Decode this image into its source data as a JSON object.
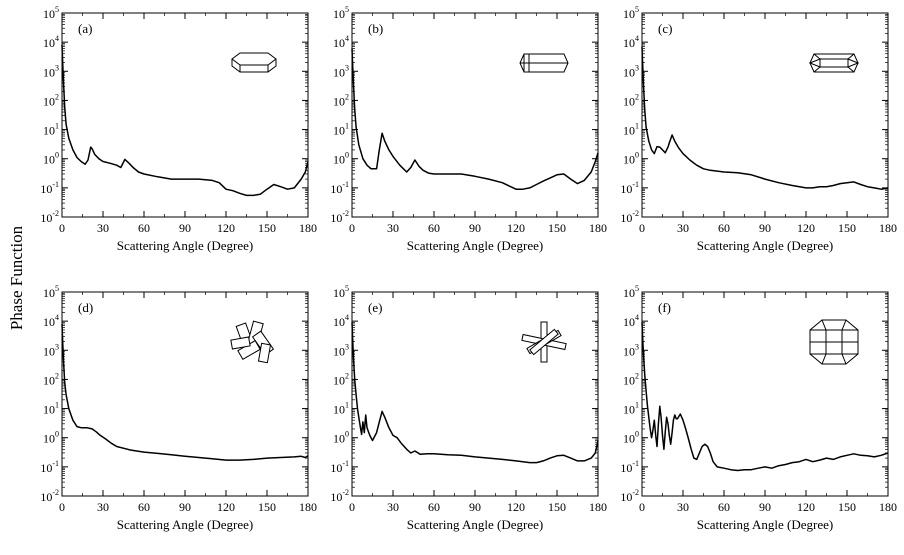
{
  "figure": {
    "ylabel": "Phase Function",
    "xlabel": "Scattering Angle (Degree)",
    "x_ticks": [
      "0",
      "30",
      "60",
      "90",
      "120",
      "150",
      "180"
    ],
    "y_ticks": [
      {
        "base": "10",
        "exp": "-2"
      },
      {
        "base": "10",
        "exp": "-1"
      },
      {
        "base": "10",
        "exp": "0"
      },
      {
        "base": "10",
        "exp": "1"
      },
      {
        "base": "10",
        "exp": "2"
      },
      {
        "base": "10",
        "exp": "3"
      },
      {
        "base": "10",
        "exp": "4"
      },
      {
        "base": "10",
        "exp": "5"
      }
    ],
    "line_color": "#000000"
  },
  "chart_data": [
    {
      "type": "line",
      "panel": "(a)",
      "crystal_icon": "hexagonal-plate-icon",
      "xlabel": "Scattering Angle (Degree)",
      "xlim": [
        0,
        180
      ],
      "ylim": [
        0.01,
        100000
      ],
      "yscale": "log",
      "x": [
        0,
        1,
        2,
        3,
        5,
        8,
        11,
        14,
        17,
        19,
        21,
        22,
        24,
        27,
        30,
        35,
        40,
        43,
        46,
        49,
        52,
        56,
        60,
        70,
        80,
        90,
        100,
        110,
        115,
        120,
        125,
        130,
        135,
        140,
        145,
        150,
        155,
        160,
        165,
        170,
        175,
        178,
        180
      ],
      "y": [
        8000,
        500,
        60,
        15,
        5,
        2,
        1.1,
        0.8,
        0.65,
        0.9,
        2.5,
        2.2,
        1.4,
        1.0,
        0.8,
        0.7,
        0.6,
        0.5,
        0.95,
        0.7,
        0.5,
        0.35,
        0.3,
        0.24,
        0.2,
        0.2,
        0.2,
        0.18,
        0.15,
        0.09,
        0.08,
        0.065,
        0.055,
        0.055,
        0.06,
        0.09,
        0.13,
        0.11,
        0.09,
        0.1,
        0.2,
        0.35,
        0.8
      ]
    },
    {
      "type": "line",
      "panel": "(b)",
      "crystal_icon": "hexagonal-column-icon",
      "xlabel": "Scattering Angle (Degree)",
      "xlim": [
        0,
        180
      ],
      "ylim": [
        0.01,
        100000
      ],
      "yscale": "log",
      "x": [
        0,
        1,
        2,
        3,
        5,
        8,
        11,
        14,
        18,
        20,
        22,
        24,
        27,
        30,
        35,
        40,
        43,
        46,
        49,
        52,
        56,
        60,
        70,
        80,
        90,
        100,
        110,
        120,
        125,
        130,
        135,
        140,
        145,
        150,
        155,
        160,
        165,
        170,
        175,
        178,
        180
      ],
      "y": [
        6000,
        400,
        50,
        12,
        3,
        1,
        0.6,
        0.45,
        0.45,
        2,
        7.5,
        4,
        2,
        1.2,
        0.6,
        0.35,
        0.5,
        0.9,
        0.55,
        0.4,
        0.32,
        0.3,
        0.3,
        0.3,
        0.25,
        0.2,
        0.15,
        0.09,
        0.09,
        0.1,
        0.13,
        0.17,
        0.22,
        0.28,
        0.3,
        0.2,
        0.14,
        0.18,
        0.35,
        0.8,
        1.6
      ]
    },
    {
      "type": "line",
      "panel": "(c)",
      "crystal_icon": "hollow-column-icon",
      "xlabel": "Scattering Angle (Degree)",
      "xlim": [
        0,
        180
      ],
      "ylim": [
        0.01,
        100000
      ],
      "yscale": "log",
      "x": [
        0,
        1,
        2,
        3,
        5,
        7,
        9,
        11,
        13,
        15,
        17,
        19,
        20,
        22,
        24,
        27,
        30,
        35,
        40,
        45,
        50,
        60,
        70,
        80,
        90,
        100,
        110,
        120,
        125,
        130,
        135,
        140,
        145,
        150,
        155,
        160,
        165,
        170,
        175,
        178,
        180
      ],
      "y": [
        7000,
        400,
        50,
        12,
        4,
        2,
        1.5,
        2.6,
        2.5,
        2.0,
        1.6,
        2.5,
        3.5,
        6.5,
        4,
        2.3,
        1.5,
        0.9,
        0.6,
        0.45,
        0.4,
        0.35,
        0.33,
        0.28,
        0.2,
        0.15,
        0.12,
        0.1,
        0.1,
        0.11,
        0.11,
        0.12,
        0.14,
        0.15,
        0.16,
        0.13,
        0.11,
        0.1,
        0.09,
        0.095,
        0.1
      ]
    },
    {
      "type": "line",
      "panel": "(d)",
      "crystal_icon": "column-aggregate-icon",
      "xlabel": "Scattering Angle (Degree)",
      "xlim": [
        0,
        180
      ],
      "ylim": [
        0.01,
        100000
      ],
      "yscale": "log",
      "x": [
        0,
        1,
        2,
        3,
        5,
        8,
        11,
        14,
        18,
        22,
        25,
        28,
        32,
        36,
        40,
        50,
        60,
        70,
        80,
        90,
        100,
        110,
        120,
        130,
        140,
        150,
        160,
        170,
        175,
        178,
        180
      ],
      "y": [
        8000,
        500,
        80,
        30,
        10,
        4,
        2.4,
        2.2,
        2.2,
        2.0,
        1.6,
        1.2,
        0.9,
        0.65,
        0.5,
        0.38,
        0.32,
        0.29,
        0.26,
        0.23,
        0.21,
        0.19,
        0.17,
        0.17,
        0.18,
        0.2,
        0.21,
        0.22,
        0.23,
        0.21,
        0.24
      ]
    },
    {
      "type": "line",
      "panel": "(e)",
      "crystal_icon": "bullet-rosette-icon",
      "xlabel": "Scattering Angle (Degree)",
      "xlim": [
        0,
        180
      ],
      "ylim": [
        0.01,
        100000
      ],
      "yscale": "log",
      "x": [
        0,
        1,
        2,
        3,
        4,
        5,
        6,
        7,
        8,
        9,
        10,
        11,
        13,
        15,
        18,
        20,
        22,
        24,
        27,
        30,
        33,
        36,
        40,
        43,
        46,
        50,
        55,
        60,
        70,
        80,
        90,
        100,
        110,
        120,
        130,
        135,
        140,
        145,
        150,
        155,
        160,
        165,
        170,
        175,
        178,
        180
      ],
      "y": [
        9000,
        600,
        100,
        30,
        10,
        5,
        2.5,
        1.3,
        3.5,
        1.5,
        6,
        2.2,
        1.2,
        0.8,
        1.5,
        3.5,
        8,
        5,
        2.2,
        1.2,
        1.0,
        0.65,
        0.4,
        0.3,
        0.35,
        0.27,
        0.28,
        0.28,
        0.26,
        0.25,
        0.22,
        0.2,
        0.18,
        0.16,
        0.14,
        0.14,
        0.16,
        0.2,
        0.24,
        0.25,
        0.2,
        0.16,
        0.16,
        0.2,
        0.3,
        0.8
      ]
    },
    {
      "type": "line",
      "panel": "(f)",
      "crystal_icon": "droxtal-icon",
      "xlabel": "Scattering Angle (Degree)",
      "xlim": [
        0,
        180
      ],
      "ylim": [
        0.01,
        100000
      ],
      "yscale": "log",
      "x": [
        0,
        1,
        2,
        3,
        4,
        5,
        6,
        7,
        8,
        9,
        10,
        11,
        12,
        13,
        14,
        15,
        16,
        17,
        18,
        19,
        20,
        21,
        22,
        23,
        24,
        25,
        26,
        28,
        30,
        32,
        34,
        36,
        38,
        40,
        42,
        44,
        46,
        48,
        50,
        52,
        55,
        60,
        65,
        70,
        75,
        80,
        85,
        90,
        95,
        100,
        105,
        110,
        115,
        120,
        125,
        130,
        135,
        140,
        145,
        150,
        155,
        160,
        165,
        170,
        175,
        180
      ],
      "y": [
        9000,
        800,
        150,
        40,
        12,
        5,
        2,
        1.0,
        1.8,
        4,
        1.2,
        0.5,
        3,
        12,
        5,
        1.2,
        0.4,
        1.5,
        5,
        3,
        1.2,
        0.6,
        1.5,
        4,
        6,
        4.5,
        4.5,
        6.5,
        4,
        2,
        0.9,
        0.4,
        0.2,
        0.18,
        0.3,
        0.5,
        0.6,
        0.5,
        0.3,
        0.15,
        0.1,
        0.09,
        0.08,
        0.075,
        0.08,
        0.08,
        0.09,
        0.1,
        0.09,
        0.11,
        0.12,
        0.14,
        0.15,
        0.18,
        0.15,
        0.17,
        0.2,
        0.18,
        0.22,
        0.25,
        0.28,
        0.25,
        0.24,
        0.22,
        0.25,
        0.3
      ]
    }
  ]
}
